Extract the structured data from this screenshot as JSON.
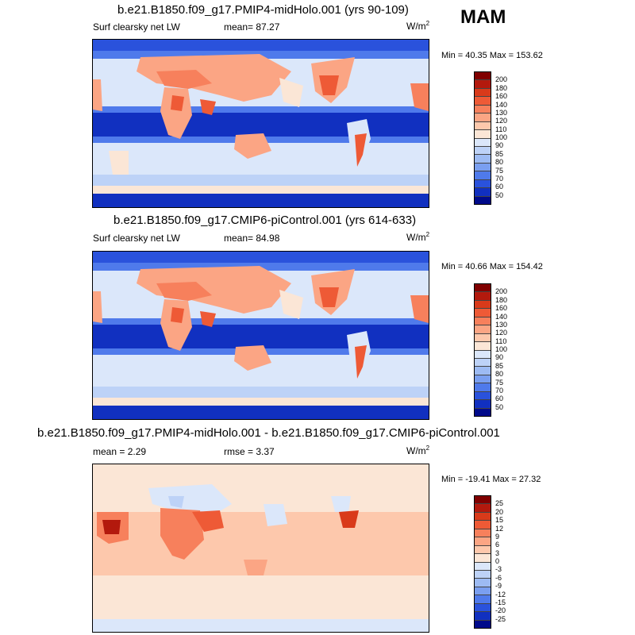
{
  "season": "MAM",
  "panels": [
    {
      "title": "b.e21.B1850.f09_g17.PMIP4-midHolo.001 (yrs 90-109)",
      "left_label": "Surf clearsky net LW",
      "stat_label": "mean=  87.27",
      "units": "W/m",
      "units_sup": "2",
      "minmax": "Min =  40.35 Max = 153.62",
      "colorbar_labels": [
        "200",
        "180",
        "160",
        "140",
        "130",
        "120",
        "110",
        "100",
        "90",
        "85",
        "80",
        "75",
        "70",
        "60",
        "50"
      ],
      "colorbar_colors": [
        "#800000",
        "#b3190d",
        "#d93a1a",
        "#ee5a36",
        "#f7805c",
        "#fba584",
        "#fdc8ac",
        "#fbe6d6",
        "#dbe7fa",
        "#bdd2f7",
        "#9dbbf3",
        "#7a9ff0",
        "#4f7aeb",
        "#2a52dc",
        "#1130c0",
        "#000a8a"
      ]
    },
    {
      "title": "b.e21.B1850.f09_g17.CMIP6-piControl.001 (yrs 614-633)",
      "left_label": "Surf clearsky net LW",
      "stat_label": "mean=  84.98",
      "units": "W/m",
      "units_sup": "2",
      "minmax": "Min =  40.66 Max = 154.42",
      "colorbar_labels": [
        "200",
        "180",
        "160",
        "140",
        "130",
        "120",
        "110",
        "100",
        "90",
        "85",
        "80",
        "75",
        "70",
        "60",
        "50"
      ],
      "colorbar_colors": [
        "#800000",
        "#b3190d",
        "#d93a1a",
        "#ee5a36",
        "#f7805c",
        "#fba584",
        "#fdc8ac",
        "#fbe6d6",
        "#dbe7fa",
        "#bdd2f7",
        "#9dbbf3",
        "#7a9ff0",
        "#4f7aeb",
        "#2a52dc",
        "#1130c0",
        "#000a8a"
      ]
    },
    {
      "title": "b.e21.B1850.f09_g17.PMIP4-midHolo.001 - b.e21.B1850.f09_g17.CMIP6-piControl.001",
      "left_label": "mean =   2.29",
      "stat_label": "rmse =   3.37",
      "units": "W/m",
      "units_sup": "2",
      "minmax": "Min = -19.41 Max =  27.32",
      "colorbar_labels": [
        "25",
        "20",
        "15",
        "12",
        "9",
        "6",
        "3",
        "0",
        "-3",
        "-6",
        "-9",
        "-12",
        "-15",
        "-20",
        "-25"
      ],
      "colorbar_colors": [
        "#800000",
        "#b3190d",
        "#d93a1a",
        "#ee5a36",
        "#f7805c",
        "#fba584",
        "#fdc8ac",
        "#fbe6d6",
        "#dbe7fa",
        "#bdd2f7",
        "#9dbbf3",
        "#7a9ff0",
        "#4f7aeb",
        "#2a52dc",
        "#1130c0",
        "#000a8a"
      ]
    }
  ]
}
